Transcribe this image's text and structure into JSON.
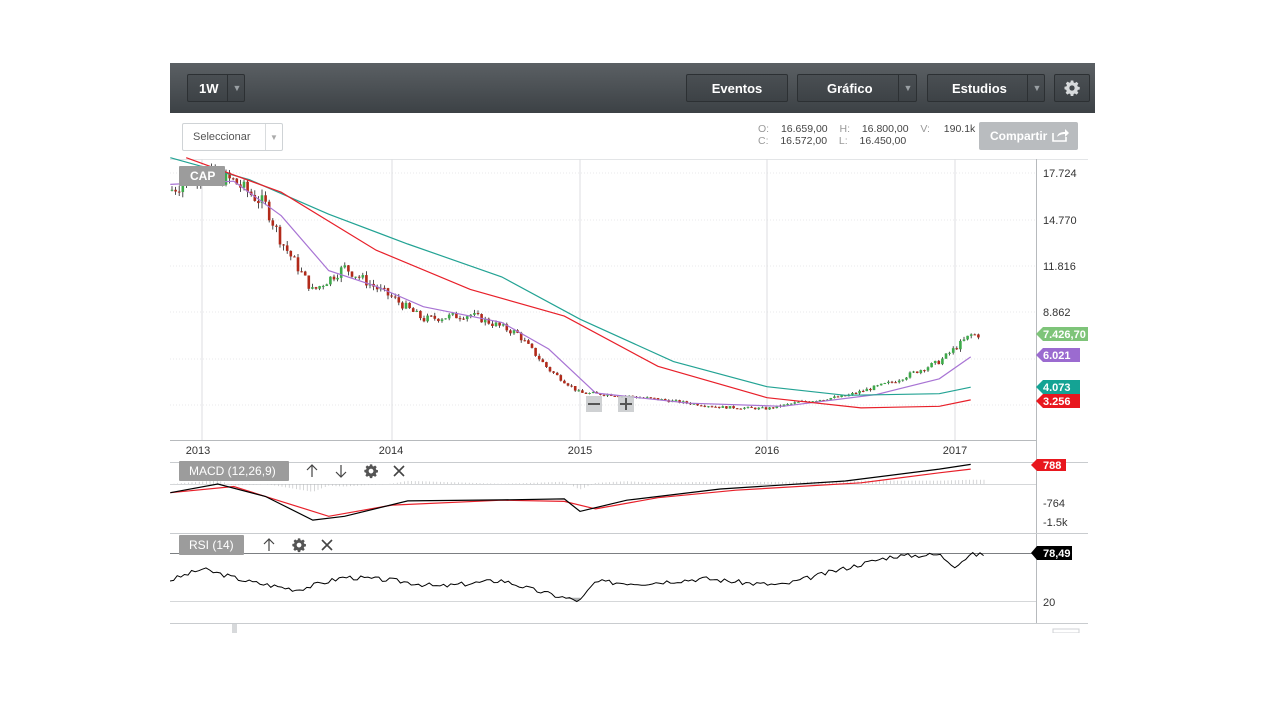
{
  "toolbar": {
    "interval": "1W",
    "events": "Eventos",
    "chart": "Gráfico",
    "studies": "Estudios"
  },
  "selector_placeholder": "Seleccionar",
  "ohlc": {
    "o_label": "O:",
    "o": "16.659,00",
    "h_label": "H:",
    "h": "16.800,00",
    "v_label": "V:",
    "v": "190.1k",
    "c_label": "C:",
    "c": "16.572,00",
    "l_label": "L:",
    "l": "16.450,00"
  },
  "share_label": "Compartir",
  "colors": {
    "up": "#3dab4a",
    "down": "#b22a1a",
    "ma_purple": "#a874d4",
    "ma_teal": "#23a394",
    "ma_red": "#e8202a",
    "toolbar": "#454a4e",
    "label_gray": "#9c9c9c"
  },
  "chart_data": [
    {
      "type": "candlestick",
      "panel_label": "CAP",
      "x_ticks": [
        "2013",
        "2014",
        "2015",
        "2016",
        "2017"
      ],
      "y_ticks": [
        "17.724",
        "14.770",
        "11.816",
        "8.862"
      ],
      "ylim": [
        2500,
        18700
      ],
      "last_price_labels": [
        {
          "text": "7.426,70",
          "color": "#7ec479"
        },
        {
          "text": "6.021",
          "color": "#9b6bd0"
        },
        {
          "text": "4.073",
          "color": "#14a394"
        },
        {
          "text": "3.256",
          "color": "#e8171e"
        }
      ],
      "close_series": [
        {
          "date": "2012-11",
          "value": 16600
        },
        {
          "date": "2013-01",
          "value": 17800
        },
        {
          "date": "2013-03",
          "value": 17200
        },
        {
          "date": "2013-05",
          "value": 15700
        },
        {
          "date": "2013-06",
          "value": 13400
        },
        {
          "date": "2013-08",
          "value": 10200
        },
        {
          "date": "2013-10",
          "value": 11700
        },
        {
          "date": "2013-12",
          "value": 10400
        },
        {
          "date": "2014-01",
          "value": 9800
        },
        {
          "date": "2014-03",
          "value": 8400
        },
        {
          "date": "2014-06",
          "value": 8700
        },
        {
          "date": "2014-09",
          "value": 7500
        },
        {
          "date": "2014-11",
          "value": 5200
        },
        {
          "date": "2015-01",
          "value": 3700
        },
        {
          "date": "2015-03",
          "value": 3600
        },
        {
          "date": "2015-06",
          "value": 3300
        },
        {
          "date": "2015-10",
          "value": 2800
        },
        {
          "date": "2016-01",
          "value": 2700
        },
        {
          "date": "2016-03",
          "value": 3100
        },
        {
          "date": "2016-06",
          "value": 3500
        },
        {
          "date": "2016-09",
          "value": 4400
        },
        {
          "date": "2016-12",
          "value": 5700
        },
        {
          "date": "2017-02",
          "value": 7400
        }
      ],
      "series": [
        {
          "name": "",
          "color": "#a874d4",
          "values": [
            {
              "date": "2012-11",
              "value": 17000
            },
            {
              "date": "2013-03",
              "value": 17200
            },
            {
              "date": "2013-06",
              "value": 15000
            },
            {
              "date": "2013-09",
              "value": 11500
            },
            {
              "date": "2013-12",
              "value": 10500
            },
            {
              "date": "2014-03",
              "value": 9200
            },
            {
              "date": "2014-08",
              "value": 8200
            },
            {
              "date": "2014-11",
              "value": 6500
            },
            {
              "date": "2015-02",
              "value": 3700
            },
            {
              "date": "2015-08",
              "value": 3050
            },
            {
              "date": "2016-02",
              "value": 2850
            },
            {
              "date": "2016-08",
              "value": 3600
            },
            {
              "date": "2016-12",
              "value": 4600
            },
            {
              "date": "2017-02",
              "value": 6000
            }
          ]
        },
        {
          "name": "",
          "color": "#23a394",
          "values": [
            {
              "date": "2012-11",
              "value": 18700
            },
            {
              "date": "2013-04",
              "value": 17300
            },
            {
              "date": "2013-09",
              "value": 15100
            },
            {
              "date": "2014-02",
              "value": 13200
            },
            {
              "date": "2014-08",
              "value": 11100
            },
            {
              "date": "2015-01",
              "value": 8400
            },
            {
              "date": "2015-07",
              "value": 5700
            },
            {
              "date": "2016-01",
              "value": 4100
            },
            {
              "date": "2016-06",
              "value": 3550
            },
            {
              "date": "2016-12",
              "value": 3650
            },
            {
              "date": "2017-02",
              "value": 4070
            }
          ]
        },
        {
          "name": "",
          "color": "#e8202a",
          "values": [
            {
              "date": "2012-12",
              "value": 18700
            },
            {
              "date": "2013-06",
              "value": 16500
            },
            {
              "date": "2013-12",
              "value": 12800
            },
            {
              "date": "2014-06",
              "value": 10300
            },
            {
              "date": "2014-12",
              "value": 8600
            },
            {
              "date": "2015-06",
              "value": 5400
            },
            {
              "date": "2016-01",
              "value": 3400
            },
            {
              "date": "2016-07",
              "value": 2750
            },
            {
              "date": "2016-12",
              "value": 2850
            },
            {
              "date": "2017-02",
              "value": 3260
            }
          ]
        }
      ]
    },
    {
      "type": "line",
      "panel_label": "MACD (12,26,9)",
      "y_ticks": [
        "-764",
        "-1.5k"
      ],
      "last_value_label": "788",
      "series": [
        {
          "name": "",
          "color": "#000000",
          "values": [
            {
              "date": "2012-11",
              "value": -350
            },
            {
              "date": "2013-02",
              "value": 0
            },
            {
              "date": "2013-05",
              "value": -500
            },
            {
              "date": "2013-08",
              "value": -1450
            },
            {
              "date": "2013-10",
              "value": -1300
            },
            {
              "date": "2014-02",
              "value": -680
            },
            {
              "date": "2014-08",
              "value": -640
            },
            {
              "date": "2014-12",
              "value": -600
            },
            {
              "date": "2015-01",
              "value": -1100
            },
            {
              "date": "2015-04",
              "value": -650
            },
            {
              "date": "2015-10",
              "value": -200
            },
            {
              "date": "2016-06",
              "value": 120
            },
            {
              "date": "2016-12",
              "value": 600
            },
            {
              "date": "2017-02",
              "value": 790
            }
          ]
        },
        {
          "name": "",
          "color": "#e8202a",
          "values": [
            {
              "date": "2012-11",
              "value": -350
            },
            {
              "date": "2013-03",
              "value": -100
            },
            {
              "date": "2013-06",
              "value": -700
            },
            {
              "date": "2013-09",
              "value": -1300
            },
            {
              "date": "2014-01",
              "value": -850
            },
            {
              "date": "2014-08",
              "value": -650
            },
            {
              "date": "2014-12",
              "value": -700
            },
            {
              "date": "2015-02",
              "value": -1000
            },
            {
              "date": "2015-06",
              "value": -550
            },
            {
              "date": "2015-11",
              "value": -250
            },
            {
              "date": "2016-07",
              "value": 50
            },
            {
              "date": "2016-12",
              "value": 450
            },
            {
              "date": "2017-02",
              "value": 600
            }
          ]
        }
      ]
    },
    {
      "type": "line",
      "panel_label": "RSI (14)",
      "y_ticks": [
        "20"
      ],
      "last_value_label": "78,49",
      "series": [
        {
          "name": "",
          "color": "#000000",
          "values": [
            {
              "date": "2012-11",
              "value": 46
            },
            {
              "date": "2013-01",
              "value": 60
            },
            {
              "date": "2013-04",
              "value": 44
            },
            {
              "date": "2013-07",
              "value": 34
            },
            {
              "date": "2013-10",
              "value": 50
            },
            {
              "date": "2014-01",
              "value": 46
            },
            {
              "date": "2014-04",
              "value": 38
            },
            {
              "date": "2014-08",
              "value": 46
            },
            {
              "date": "2014-10",
              "value": 34
            },
            {
              "date": "2014-12",
              "value": 24
            },
            {
              "date": "2015-01",
              "value": 20
            },
            {
              "date": "2015-02",
              "value": 44
            },
            {
              "date": "2015-05",
              "value": 42
            },
            {
              "date": "2015-09",
              "value": 48
            },
            {
              "date": "2015-12",
              "value": 42
            },
            {
              "date": "2016-02",
              "value": 40
            },
            {
              "date": "2016-05",
              "value": 56
            },
            {
              "date": "2016-07",
              "value": 66
            },
            {
              "date": "2016-09",
              "value": 76
            },
            {
              "date": "2016-12",
              "value": 78
            },
            {
              "date": "2017-01",
              "value": 64
            },
            {
              "date": "2017-02",
              "value": 78
            }
          ]
        }
      ]
    }
  ]
}
